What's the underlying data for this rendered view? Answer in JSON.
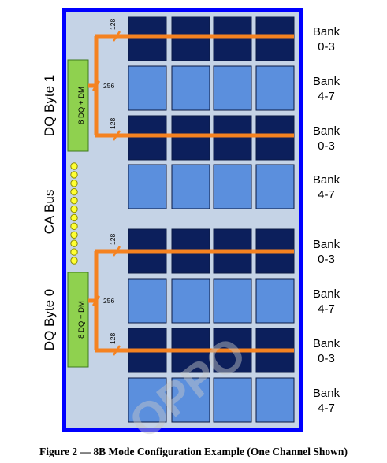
{
  "diagram": {
    "side_labels": {
      "dq_byte_1": "DQ Byte 1",
      "ca_bus": "CA Bus",
      "dq_byte_0": "DQ Byte 0"
    },
    "connector_label": "8 DQ + DM",
    "bus_widths": {
      "top": "128",
      "middle": "256",
      "bottom": "128"
    },
    "bank_rows": [
      {
        "type": "dark",
        "line1": "Bank",
        "line2": "0-3"
      },
      {
        "type": "light",
        "line1": "Bank",
        "line2": "4-7"
      },
      {
        "type": "dark",
        "line1": "Bank",
        "line2": "0-3"
      },
      {
        "type": "light",
        "line1": "Bank",
        "line2": "4-7"
      },
      {
        "type": "dark",
        "line1": "Bank",
        "line2": "0-3"
      },
      {
        "type": "light",
        "line1": "Bank",
        "line2": "4-7"
      },
      {
        "type": "dark",
        "line1": "Bank",
        "line2": "0-3"
      },
      {
        "type": "light",
        "line1": "Bank",
        "line2": "4-7"
      }
    ],
    "watermark": "OPPO",
    "colors": {
      "frame": "#0000ff",
      "die_background": "#c5d3e6",
      "bank_dark": "#0c1f5c",
      "bank_light": "#5b8fdd",
      "bus_line": "#f58220",
      "connector": "#8fd14f",
      "dq_pin": "#3aa33a",
      "ca_pin": "#ffff33"
    }
  },
  "caption": "Figure 2 — 8B Mode Configuration Example (One Channel Shown)"
}
